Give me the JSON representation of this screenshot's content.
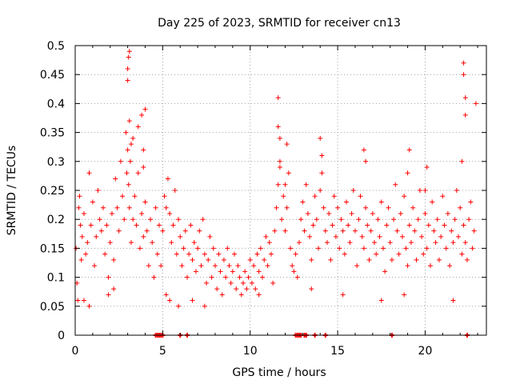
{
  "chart_data": {
    "type": "scatter",
    "title": "Day 225 of 2023, SRMTID for receiver cn13",
    "xlabel": "GPS time / hours",
    "ylabel": "SRMTID / TECUs",
    "xlim": [
      0,
      23.5
    ],
    "ylim": [
      0,
      0.5
    ],
    "xticks": [
      0,
      5,
      10,
      15,
      20
    ],
    "yticks": [
      0,
      0.05,
      0.1,
      0.15,
      0.2,
      0.25,
      0.3,
      0.35,
      0.4,
      0.45,
      0.5
    ],
    "xtick_labels": [
      "0",
      "5",
      "10",
      "15",
      "20"
    ],
    "ytick_labels": [
      "0",
      "0.05",
      "0.1",
      "0.15",
      "0.2",
      "0.25",
      "0.3",
      "0.35",
      "0.4",
      "0.45",
      "0.5"
    ],
    "grid": true,
    "marker": "+",
    "color": "#ff0000",
    "series": [
      {
        "name": "SRMTID",
        "x": [
          0.05,
          0.1,
          0.15,
          0.2,
          0.25,
          0.3,
          0.35,
          0.4,
          0.5,
          0.6,
          0.7,
          0.8,
          0.9,
          1.0,
          1.1,
          1.2,
          1.3,
          1.4,
          1.5,
          1.6,
          1.7,
          1.8,
          1.9,
          2.0,
          2.1,
          2.2,
          2.3,
          2.4,
          2.5,
          2.6,
          2.7,
          2.8,
          2.9,
          2.95,
          3.0,
          3.05,
          3.1,
          3.15,
          3.2,
          3.3,
          3.4,
          3.5,
          3.6,
          3.7,
          3.8,
          3.9,
          4.0,
          4.1,
          4.2,
          4.3,
          4.4,
          4.5,
          4.6,
          4.7,
          4.8,
          4.9,
          5.0,
          5.1,
          5.2,
          5.3,
          5.4,
          5.5,
          5.6,
          5.7,
          5.8,
          5.9,
          6.0,
          6.1,
          6.2,
          6.3,
          6.4,
          6.5,
          6.6,
          6.7,
          6.8,
          6.9,
          7.0,
          7.1,
          7.2,
          7.3,
          7.4,
          7.5,
          7.6,
          7.7,
          7.8,
          7.9,
          8.0,
          8.1,
          8.2,
          8.3,
          8.4,
          8.5,
          8.6,
          8.7,
          8.8,
          8.9,
          9.0,
          9.1,
          9.2,
          9.3,
          9.4,
          9.5,
          9.6,
          9.7,
          9.8,
          9.9,
          10.0,
          10.1,
          10.2,
          10.3,
          10.4,
          10.5,
          10.6,
          10.7,
          10.8,
          10.9,
          11.0,
          11.1,
          11.2,
          11.3,
          11.4,
          11.5,
          11.6,
          11.7,
          11.8,
          11.9,
          12.0,
          12.1,
          12.2,
          12.3,
          12.4,
          12.5,
          12.6,
          12.7,
          12.8,
          12.9,
          13.0,
          13.1,
          13.2,
          13.3,
          13.4,
          13.5,
          13.6,
          13.7,
          13.8,
          13.9,
          14.0,
          14.1,
          14.2,
          14.3,
          14.4,
          14.5,
          14.6,
          14.7,
          14.8,
          14.9,
          15.0,
          15.1,
          15.2,
          15.3,
          15.4,
          15.5,
          15.6,
          15.7,
          15.8,
          15.9,
          16.0,
          16.1,
          16.2,
          16.3,
          16.4,
          16.5,
          16.6,
          16.7,
          16.8,
          16.9,
          17.0,
          17.1,
          17.2,
          17.3,
          17.4,
          17.5,
          17.6,
          17.7,
          17.8,
          17.9,
          18.0,
          18.1,
          18.2,
          18.3,
          18.4,
          18.5,
          18.6,
          18.7,
          18.8,
          18.9,
          19.0,
          19.1,
          19.2,
          19.3,
          19.4,
          19.5,
          19.6,
          19.7,
          19.8,
          19.9,
          20.0,
          20.1,
          20.2,
          20.3,
          20.4,
          20.5,
          20.6,
          20.7,
          20.8,
          20.9,
          21.0,
          21.1,
          21.2,
          21.3,
          21.4,
          21.5,
          21.6,
          21.7,
          21.8,
          21.9,
          22.0,
          22.1,
          22.2,
          22.3,
          22.4,
          22.5,
          22.6,
          22.7,
          22.8,
          22.9,
          3.0,
          3.0,
          3.05,
          3.1,
          3.1,
          3.2,
          3.3,
          3.6,
          3.8,
          3.9,
          3.9,
          4.0,
          11.6,
          11.6,
          11.7,
          11.7,
          12.0,
          12.1,
          22.2,
          22.2,
          22.3,
          22.3,
          22.1,
          14.0,
          14.1,
          16.5,
          16.6,
          19.0,
          19.1,
          20.0,
          20.1,
          0.5,
          0.8,
          1.9,
          2.2,
          5.2,
          5.4,
          5.9,
          6.7,
          7.4,
          10.5,
          13.5,
          15.3,
          17.5,
          18.8,
          21.6
        ],
        "y": [
          0.15,
          0.09,
          0.06,
          0.22,
          0.24,
          0.19,
          0.13,
          0.17,
          0.21,
          0.14,
          0.16,
          0.28,
          0.19,
          0.23,
          0.12,
          0.17,
          0.25,
          0.2,
          0.18,
          0.22,
          0.14,
          0.19,
          0.1,
          0.16,
          0.21,
          0.13,
          0.27,
          0.22,
          0.18,
          0.3,
          0.24,
          0.2,
          0.35,
          0.28,
          0.32,
          0.26,
          0.22,
          0.3,
          0.16,
          0.2,
          0.24,
          0.19,
          0.28,
          0.15,
          0.21,
          0.17,
          0.23,
          0.18,
          0.12,
          0.2,
          0.16,
          0.1,
          0.22,
          0.14,
          0.19,
          0.12,
          0.18,
          0.24,
          0.22,
          0.27,
          0.21,
          0.16,
          0.19,
          0.25,
          0.14,
          0.2,
          0.17,
          0.12,
          0.15,
          0.18,
          0.1,
          0.14,
          0.19,
          0.13,
          0.16,
          0.11,
          0.15,
          0.18,
          0.12,
          0.2,
          0.14,
          0.09,
          0.13,
          0.17,
          0.1,
          0.15,
          0.12,
          0.08,
          0.14,
          0.11,
          0.07,
          0.13,
          0.1,
          0.15,
          0.12,
          0.09,
          0.11,
          0.14,
          0.08,
          0.12,
          0.1,
          0.07,
          0.09,
          0.11,
          0.08,
          0.1,
          0.13,
          0.09,
          0.12,
          0.08,
          0.14,
          0.11,
          0.15,
          0.1,
          0.13,
          0.17,
          0.12,
          0.16,
          0.14,
          0.09,
          0.18,
          0.22,
          0.26,
          0.3,
          0.2,
          0.24,
          0.18,
          0.22,
          0.28,
          0.15,
          0.12,
          0.11,
          0.14,
          0.1,
          0.16,
          0.2,
          0.23,
          0.18,
          0.26,
          0.21,
          0.17,
          0.13,
          0.19,
          0.24,
          0.2,
          0.15,
          0.25,
          0.28,
          0.22,
          0.18,
          0.16,
          0.21,
          0.13,
          0.19,
          0.24,
          0.17,
          0.22,
          0.15,
          0.2,
          0.18,
          0.14,
          0.23,
          0.19,
          0.16,
          0.21,
          0.25,
          0.18,
          0.12,
          0.2,
          0.24,
          0.17,
          0.15,
          0.22,
          0.19,
          0.13,
          0.18,
          0.21,
          0.16,
          0.14,
          0.2,
          0.17,
          0.23,
          0.15,
          0.11,
          0.19,
          0.22,
          0.16,
          0.13,
          0.2,
          0.26,
          0.18,
          0.14,
          0.21,
          0.17,
          0.24,
          0.15,
          0.12,
          0.19,
          0.16,
          0.22,
          0.18,
          0.13,
          0.2,
          0.25,
          0.17,
          0.14,
          0.21,
          0.15,
          0.19,
          0.12,
          0.23,
          0.18,
          0.16,
          0.2,
          0.13,
          0.17,
          0.24,
          0.19,
          0.15,
          0.21,
          0.12,
          0.18,
          0.16,
          0.2,
          0.25,
          0.17,
          0.22,
          0.14,
          0.19,
          0.16,
          0.13,
          0.2,
          0.23,
          0.15,
          0.18,
          0.4,
          0.44,
          0.46,
          0.48,
          0.49,
          0.37,
          0.33,
          0.34,
          0.36,
          0.38,
          0.29,
          0.32,
          0.39,
          0.41,
          0.36,
          0.34,
          0.29,
          0.26,
          0.33,
          0.45,
          0.47,
          0.41,
          0.38,
          0.3,
          0.34,
          0.31,
          0.32,
          0.3,
          0.28,
          0.32,
          0.25,
          0.29,
          0.06,
          0.05,
          0.07,
          0.08,
          0.07,
          0.06,
          0.05,
          0.06,
          0.05,
          0.07,
          0.08,
          0.07,
          0.06,
          0.07,
          0.06
        ]
      }
    ],
    "zero_markers_x": [
      4.6,
      4.7,
      4.8,
      4.9,
      5.0,
      6.0,
      6.4,
      12.6,
      12.7,
      12.8,
      12.9,
      13.1,
      13.2,
      13.7,
      14.3,
      18.1,
      22.4
    ]
  }
}
